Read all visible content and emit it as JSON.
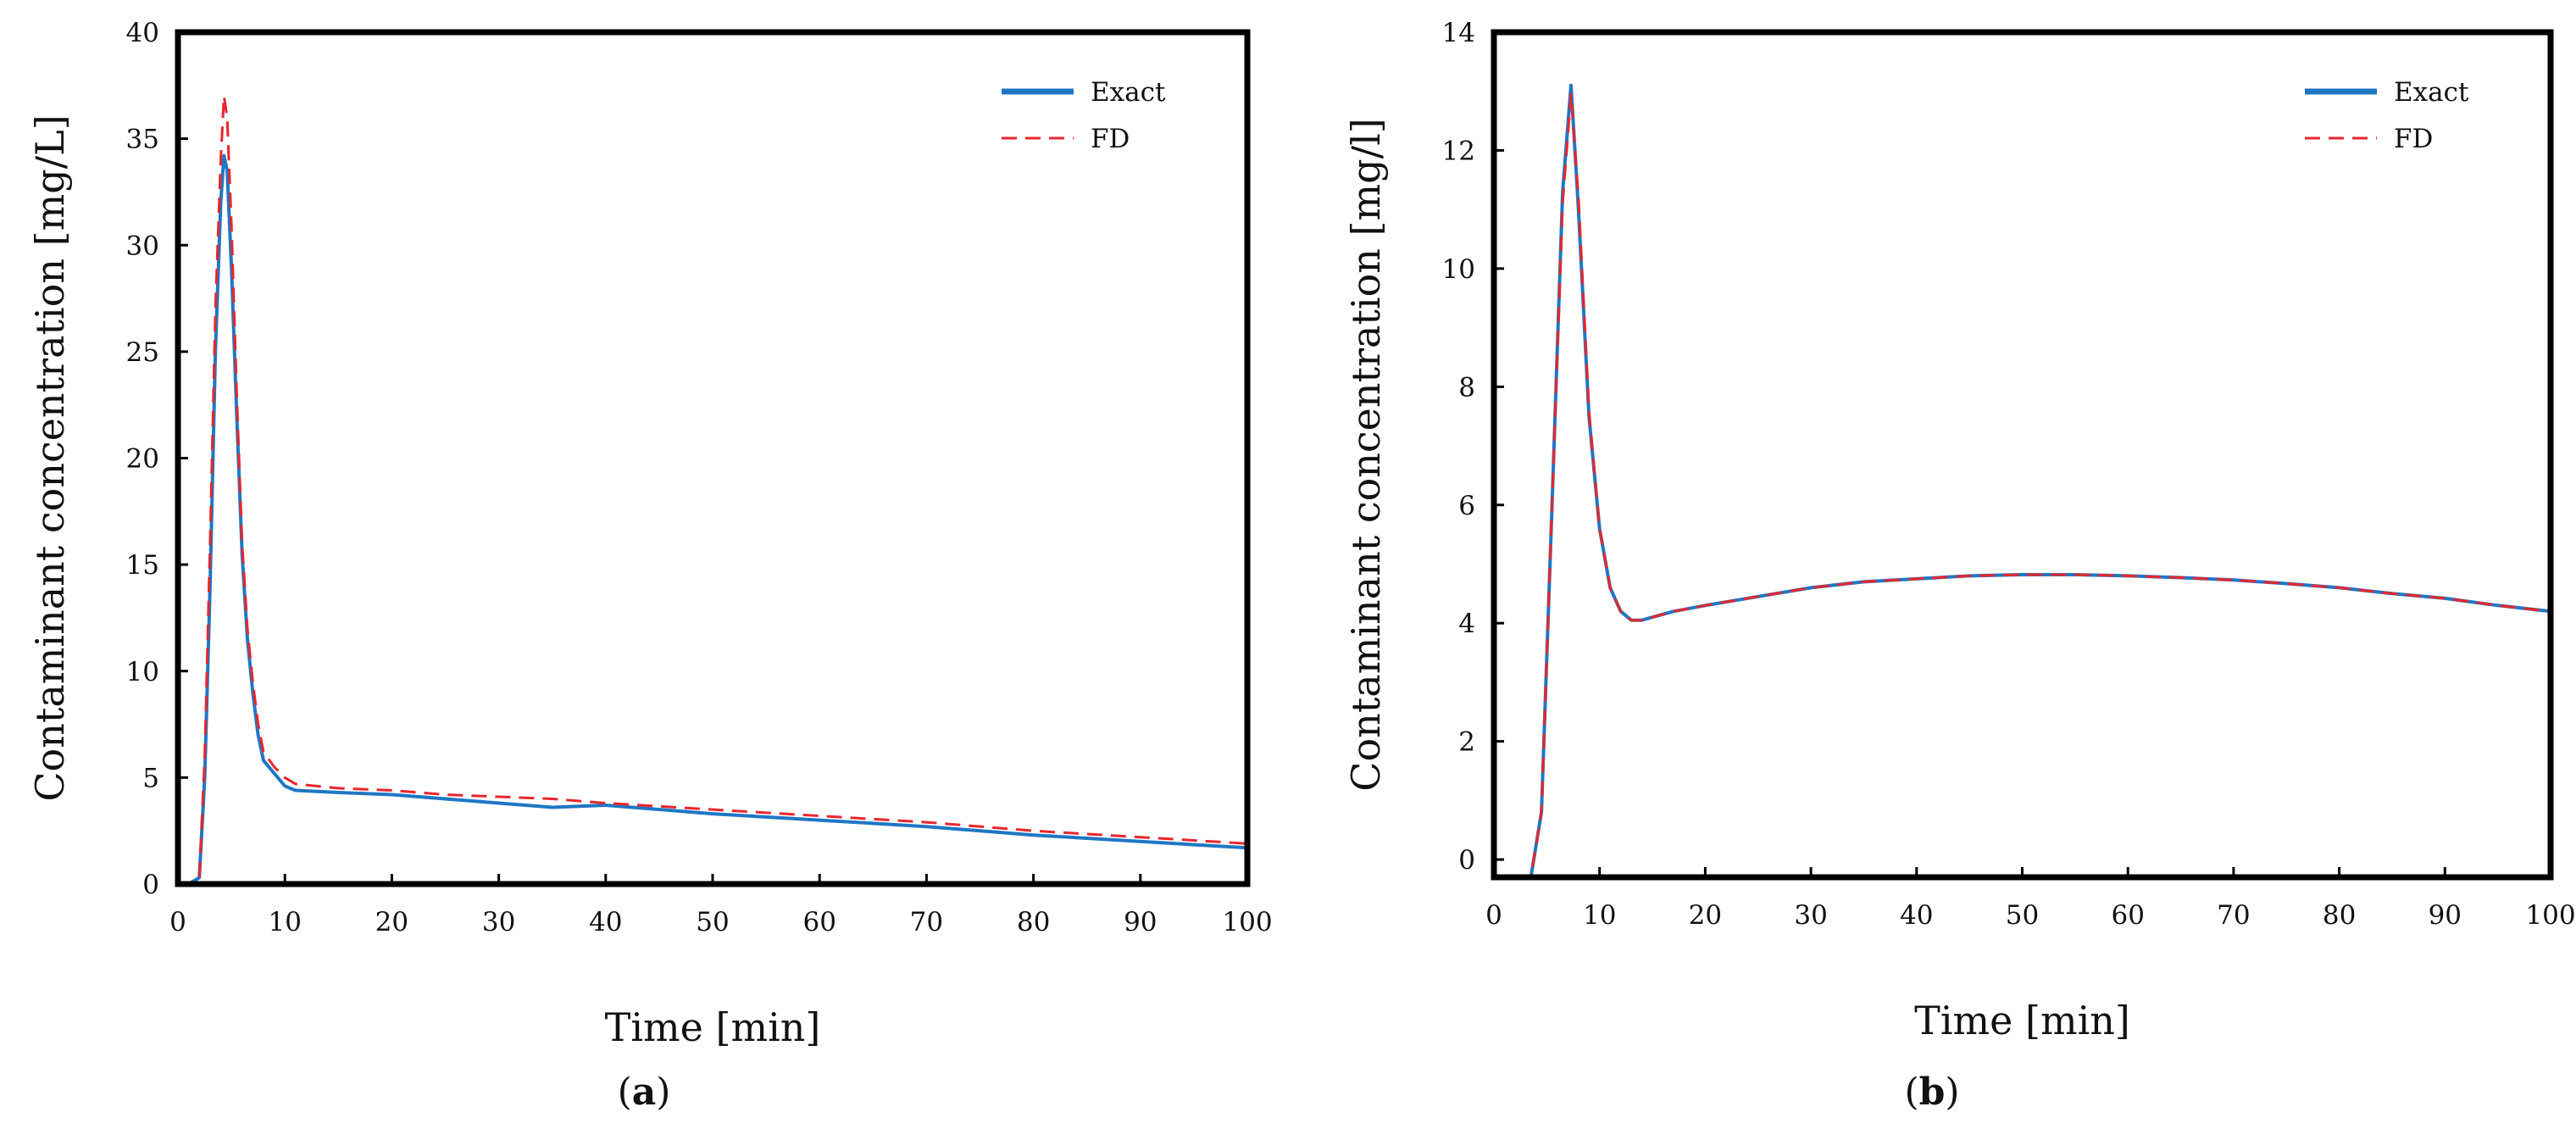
{
  "chart_data": [
    {
      "type": "line",
      "panel_label": "a",
      "xlabel": "Time [min]",
      "ylabel": "Contaminant concentration  [mg/L]",
      "xlim": [
        0,
        100
      ],
      "ylim": [
        0,
        40
      ],
      "xticks": [
        0,
        10,
        20,
        30,
        40,
        50,
        60,
        70,
        80,
        90,
        100
      ],
      "yticks": [
        0,
        5,
        10,
        15,
        20,
        25,
        30,
        35,
        40
      ],
      "legend_position": "top-right",
      "series": [
        {
          "name": "Exact",
          "color": "#1f77c4",
          "style": "solid",
          "x": [
            0,
            1,
            2,
            2.5,
            3,
            3.5,
            4,
            4.3,
            4.6,
            5,
            5.5,
            6,
            6.5,
            7,
            7.5,
            8,
            9,
            10,
            11,
            15,
            20,
            25,
            30,
            35,
            40,
            50,
            60,
            70,
            80,
            90,
            100
          ],
          "y": [
            0,
            0,
            0.3,
            5,
            14,
            25,
            32,
            34.2,
            33.5,
            29,
            22,
            15.5,
            11.5,
            9,
            7,
            5.8,
            5.2,
            4.6,
            4.4,
            4.3,
            4.2,
            4.0,
            3.8,
            3.6,
            3.7,
            3.3,
            3.0,
            2.7,
            2.3,
            2.0,
            1.7
          ]
        },
        {
          "name": "FD",
          "color": "#e8262c",
          "style": "dashed",
          "x": [
            0,
            1,
            2,
            2.5,
            3,
            3.5,
            4,
            4.3,
            4.6,
            5,
            5.5,
            6,
            6.5,
            7,
            7.5,
            8,
            9,
            10,
            11,
            15,
            20,
            25,
            30,
            35,
            40,
            50,
            60,
            70,
            80,
            90,
            100
          ],
          "y": [
            0,
            0,
            0.3,
            6,
            16,
            27,
            34,
            37,
            36,
            31,
            23,
            16,
            12,
            9.5,
            7.5,
            6.2,
            5.5,
            5.0,
            4.7,
            4.5,
            4.4,
            4.2,
            4.1,
            4.0,
            3.8,
            3.5,
            3.2,
            2.9,
            2.5,
            2.2,
            1.9
          ]
        }
      ]
    },
    {
      "type": "line",
      "panel_label": "b",
      "xlabel": "Time [min]",
      "ylabel": "Contaminant concentration  [mg/l]",
      "xlim": [
        0,
        100
      ],
      "ylim": [
        -0.3,
        14
      ],
      "xticks": [
        0,
        10,
        20,
        30,
        40,
        50,
        60,
        70,
        80,
        90,
        100
      ],
      "yticks": [
        0,
        2,
        4,
        6,
        8,
        10,
        12,
        14
      ],
      "legend_position": "top-right",
      "series": [
        {
          "name": "Exact",
          "color": "#1f77c4",
          "style": "solid",
          "x": [
            0,
            2,
            3.5,
            4.5,
            5.5,
            6.5,
            7.3,
            8,
            9,
            10,
            11,
            12,
            13,
            14,
            15,
            17,
            20,
            25,
            30,
            35,
            40,
            45,
            50,
            55,
            60,
            65,
            70,
            75,
            80,
            85,
            90,
            95,
            100
          ],
          "y": [
            -0.3,
            -0.3,
            -0.3,
            0.8,
            6,
            11.3,
            13.1,
            11,
            7.5,
            5.6,
            4.6,
            4.2,
            4.05,
            4.05,
            4.1,
            4.2,
            4.3,
            4.45,
            4.6,
            4.7,
            4.75,
            4.8,
            4.82,
            4.82,
            4.8,
            4.77,
            4.73,
            4.67,
            4.6,
            4.5,
            4.42,
            4.3,
            4.2
          ]
        },
        {
          "name": "FD",
          "color": "#e8262c",
          "style": "dashed",
          "x": [
            0,
            2,
            3.5,
            4.5,
            5.5,
            6.5,
            7.3,
            8,
            9,
            10,
            11,
            12,
            13,
            14,
            15,
            17,
            20,
            25,
            30,
            35,
            40,
            45,
            50,
            55,
            60,
            65,
            70,
            75,
            80,
            85,
            90,
            95,
            100
          ],
          "y": [
            -0.3,
            -0.3,
            -0.3,
            0.8,
            6,
            11.1,
            12.95,
            11.2,
            7.6,
            5.6,
            4.6,
            4.2,
            4.05,
            4.05,
            4.1,
            4.2,
            4.3,
            4.45,
            4.6,
            4.7,
            4.75,
            4.8,
            4.82,
            4.82,
            4.8,
            4.77,
            4.73,
            4.67,
            4.6,
            4.5,
            4.42,
            4.3,
            4.2
          ]
        }
      ]
    }
  ]
}
